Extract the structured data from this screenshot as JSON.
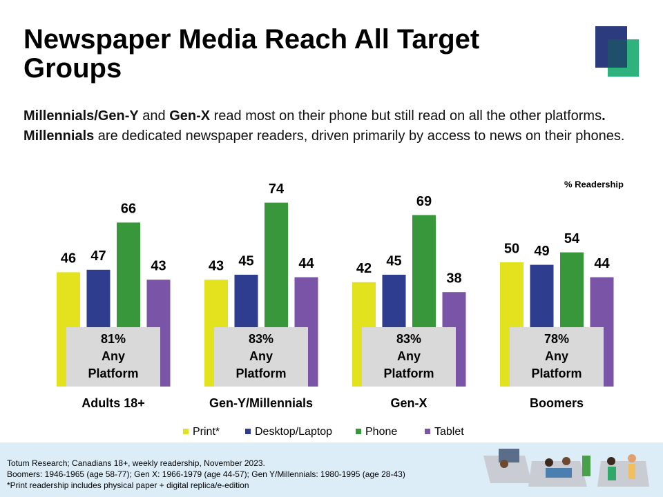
{
  "title": "Newspaper Media Reach All Target Groups",
  "subtitle_runs": [
    {
      "text": "Millennials/Gen-Y",
      "bold": true
    },
    {
      "text": " and ",
      "bold": false
    },
    {
      "text": "Gen-X",
      "bold": true
    },
    {
      "text": " read most on their phone but still read on all the other platforms",
      "bold": false
    },
    {
      "text": ". Millennials",
      "bold": true
    },
    {
      "text": " are dedicated newspaper readers, driven primarily by access to news on their phones.",
      "bold": false
    }
  ],
  "chart_data": {
    "type": "bar",
    "unit_note": "% Readership",
    "categories": [
      "Adults 18+",
      "Gen-Y/Millennials",
      "Gen-X",
      "Boomers"
    ],
    "series": [
      {
        "name": "Print*",
        "color": "#e2e21e",
        "values": [
          46,
          43,
          42,
          50
        ]
      },
      {
        "name": "Desktop/Laptop",
        "color": "#2e3d8e",
        "values": [
          47,
          45,
          45,
          49
        ]
      },
      {
        "name": "Phone",
        "color": "#38973a",
        "values": [
          66,
          74,
          69,
          54
        ]
      },
      {
        "name": "Tablet",
        "color": "#7a54a6",
        "values": [
          43,
          44,
          38,
          44
        ]
      }
    ],
    "any_platform": {
      "label": "Any Platform",
      "values": [
        81,
        83,
        83,
        78
      ],
      "value_labels": [
        "81%",
        "83%",
        "83%",
        "78%"
      ]
    },
    "ylim": [
      0,
      100
    ]
  },
  "footer": [
    "Totum Research; Canadians 18+, weekly readership, November 2023.",
    "Boomers: 1946-1965 (age 58-77); Gen X: 1966-1979 (age 44-57); Gen Y/Millennials: 1980-1995 (age 28-43)",
    "*Print readership includes physical paper + digital replica/e-edition"
  ]
}
